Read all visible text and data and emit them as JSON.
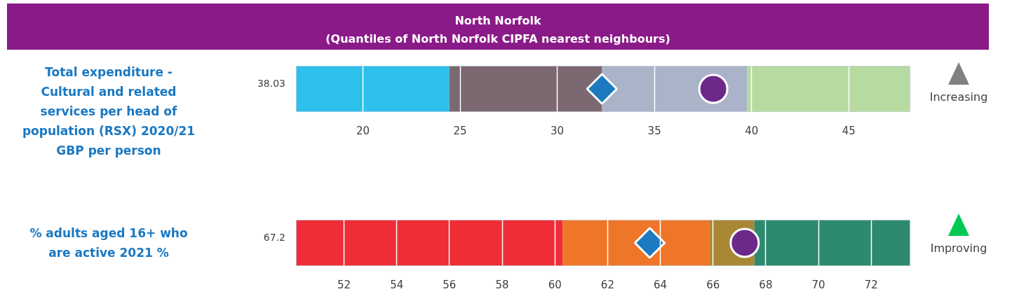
{
  "chart_data": [
    {
      "type": "scatter",
      "orientation": "horizontal",
      "title": "North Norfolk",
      "subtitle": "(Quantiles of North Norfolk CIPFA nearest neighbours)",
      "categories": [
        "Total expenditure - Cultural and related services per head of population (RSX) 2020/21 GBP per person"
      ],
      "series": [
        {
          "marker": "diamond",
          "color": "#1c7bc0",
          "values": [
            32.3
          ]
        },
        {
          "marker": "circle",
          "color": "#6b2a8a",
          "values": [
            38.03
          ]
        }
      ],
      "bands": [
        {
          "axis": "x",
          "from": 16.57,
          "to": 24.44,
          "color": "#2cc0ea"
        },
        {
          "axis": "x",
          "from": 24.44,
          "to": 32.31,
          "color": "#7b6870"
        },
        {
          "axis": "x",
          "from": 32.31,
          "to": 39.78,
          "color": "#abb3c8"
        },
        {
          "axis": "x",
          "from": 39.78,
          "to": 48.15,
          "color": "#b6daa0"
        }
      ],
      "xlim": [
        16.57,
        48.15
      ],
      "xticks": [
        20,
        25,
        30,
        35,
        40,
        45
      ],
      "grid": "x",
      "annotations": [
        "38.03",
        "Increasing"
      ]
    },
    {
      "type": "scatter",
      "orientation": "horizontal",
      "categories": [
        "% adults aged 16+ who are active 2021 %"
      ],
      "series": [
        {
          "marker": "diamond",
          "color": "#1c7bc0",
          "values": [
            63.6
          ]
        },
        {
          "marker": "circle",
          "color": "#6b2a8a",
          "values": [
            67.2
          ]
        }
      ],
      "bands": [
        {
          "axis": "x",
          "from": 50.19,
          "to": 60.29,
          "color": "#ee2d36"
        },
        {
          "axis": "x",
          "from": 60.29,
          "to": 65.87,
          "color": "#ef7628"
        },
        {
          "axis": "x",
          "from": 65.87,
          "to": 67.57,
          "color": "#a88735"
        },
        {
          "axis": "x",
          "from": 67.57,
          "to": 73.47,
          "color": "#2e8a6e"
        }
      ],
      "xlim": [
        50.19,
        73.47
      ],
      "xticks": [
        52,
        54,
        56,
        58,
        60,
        62,
        64,
        66,
        68,
        70,
        72
      ],
      "grid": "x",
      "annotations": [
        "67.2",
        "Improving"
      ]
    }
  ]
}
